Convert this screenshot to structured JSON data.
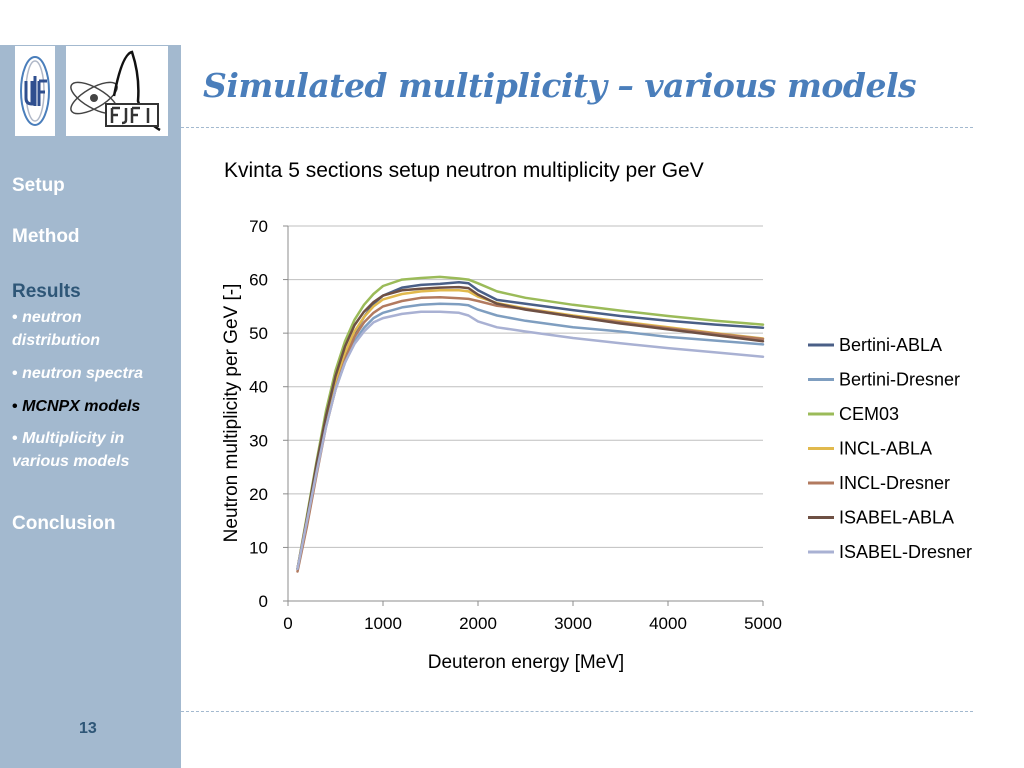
{
  "slide": {
    "title": "Simulated multiplicity – various models",
    "page_number": "13"
  },
  "sidebar": {
    "setup": "Setup",
    "method": "Method",
    "results": "Results",
    "sub_items": [
      {
        "label": "neutron distribution"
      },
      {
        "label": "neutron spectra"
      },
      {
        "label": "MCNPX models"
      },
      {
        "label": "Multiplicity in various models"
      }
    ],
    "bullet": "•",
    "conclusion": "Conclusion"
  },
  "colors": {
    "sidebar": "#a3b9cf",
    "title": "#4a7ebb",
    "active_nav": "#2e5677"
  },
  "chart_data": {
    "type": "line",
    "title": "Kvinta 5 sections setup neutron multiplicity per GeV",
    "xlabel": "Deuteron energy [MeV]",
    "ylabel": "Neutron multiplicity per GeV [-]",
    "xlim": [
      0,
      5000
    ],
    "ylim": [
      0,
      70
    ],
    "xticks": [
      0,
      1000,
      2000,
      3000,
      4000,
      5000
    ],
    "yticks": [
      0,
      10,
      20,
      30,
      40,
      50,
      60,
      70
    ],
    "grid": true,
    "legend_position": "right",
    "x": [
      100,
      200,
      300,
      400,
      500,
      600,
      700,
      800,
      900,
      1000,
      1200,
      1400,
      1600,
      1800,
      1900,
      2000,
      2200,
      2500,
      3000,
      3500,
      4000,
      4500,
      5000
    ],
    "series": [
      {
        "name": "Bertini-ABLA",
        "color": "#4a5f87",
        "values": [
          6,
          15,
          25,
          34,
          41,
          46,
          50,
          53,
          55.5,
          57,
          58.5,
          59,
          59.2,
          59.5,
          59.3,
          58,
          56.2,
          55.5,
          54.3,
          53.2,
          52.3,
          51.6,
          51
        ]
      },
      {
        "name": "Bertini-Dresner",
        "color": "#7f9ec0",
        "values": [
          6,
          15,
          24.5,
          33,
          39.5,
          44.5,
          48.5,
          51,
          52.8,
          53.8,
          54.8,
          55.3,
          55.5,
          55.4,
          55.2,
          54.4,
          53.3,
          52.3,
          51.1,
          50.3,
          49.3,
          48.6,
          47.9
        ]
      },
      {
        "name": "CEM03",
        "color": "#9bbb59",
        "values": [
          6,
          16,
          26,
          35.5,
          43,
          48.5,
          52.5,
          55.3,
          57.3,
          58.8,
          60,
          60.3,
          60.5,
          60.2,
          60,
          59.3,
          57.8,
          56.6,
          55.3,
          54.2,
          53.2,
          52.3,
          51.6
        ]
      },
      {
        "name": "INCL-ABLA",
        "color": "#e1b94d",
        "values": [
          6,
          15.5,
          25,
          34,
          41,
          46.3,
          50.3,
          53,
          55,
          56.3,
          57.3,
          57.8,
          58,
          58,
          57.8,
          56.8,
          55.6,
          54.6,
          53.3,
          52.2,
          51.1,
          50,
          49
        ]
      },
      {
        "name": "INCL-Dresner",
        "color": "#b27a5f",
        "values": [
          5.5,
          14,
          23.5,
          32.5,
          39.5,
          45,
          49.3,
          52,
          53.8,
          55,
          56,
          56.6,
          56.7,
          56.5,
          56.4,
          56,
          55.1,
          54.5,
          53.1,
          52,
          50.9,
          49.9,
          48.9
        ]
      },
      {
        "name": "ISABEL-ABLA",
        "color": "#6e5044",
        "values": [
          6,
          15.5,
          25.5,
          34.5,
          42,
          47.5,
          51.5,
          54,
          55.8,
          57,
          58,
          58.3,
          58.5,
          58.6,
          58.4,
          57.2,
          55.5,
          54.4,
          53.1,
          51.8,
          50.7,
          49.6,
          48.5
        ]
      },
      {
        "name": "ISABEL-Dresner",
        "color": "#a9b1d3",
        "values": [
          6,
          15,
          24,
          32.5,
          39.5,
          44.5,
          48,
          50.3,
          52,
          52.8,
          53.6,
          54,
          54,
          53.8,
          53.3,
          52.2,
          51.1,
          50.3,
          49.1,
          48.1,
          47.2,
          46.4,
          45.6
        ]
      }
    ]
  }
}
